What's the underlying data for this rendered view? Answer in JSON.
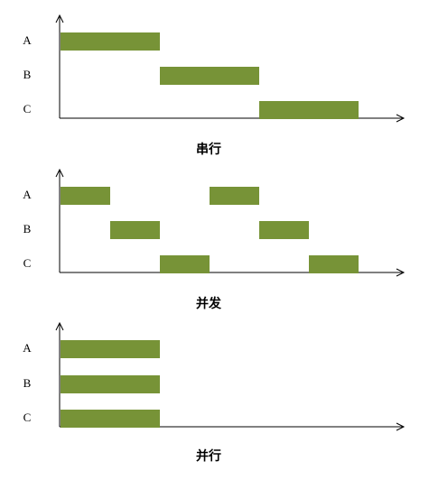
{
  "panels": [
    {
      "caption": "串行",
      "rows": [
        "A",
        "B",
        "C"
      ],
      "bars": [
        {
          "row": "A",
          "start": 0,
          "end": 2
        },
        {
          "row": "B",
          "start": 2,
          "end": 4
        },
        {
          "row": "C",
          "start": 4,
          "end": 6
        }
      ]
    },
    {
      "caption": "并发",
      "rows": [
        "A",
        "B",
        "C"
      ],
      "bars": [
        {
          "row": "A",
          "start": 0,
          "end": 1
        },
        {
          "row": "B",
          "start": 1,
          "end": 2
        },
        {
          "row": "C",
          "start": 2,
          "end": 3
        },
        {
          "row": "A",
          "start": 3,
          "end": 4
        },
        {
          "row": "B",
          "start": 4,
          "end": 5
        },
        {
          "row": "C",
          "start": 5,
          "end": 6
        }
      ]
    },
    {
      "caption": "并行",
      "rows": [
        "A",
        "B",
        "C"
      ],
      "bars": [
        {
          "row": "A",
          "start": 0,
          "end": 2
        },
        {
          "row": "B",
          "start": 0,
          "end": 2
        },
        {
          "row": "C",
          "start": 0,
          "end": 2
        }
      ]
    }
  ],
  "colors": {
    "bar": "#779337",
    "axis": "#000000"
  }
}
